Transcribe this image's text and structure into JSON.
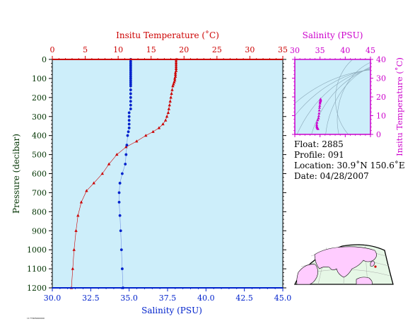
{
  "colors": {
    "plot_bg": "#cdeefa",
    "temperature": "#cc0000",
    "salinity": "#0022cc",
    "inset": "#cc00cc",
    "axis_text": "#003300",
    "land": "#ffccff",
    "sea": "#e6f7e6"
  },
  "chart_data": [
    {
      "type": "line",
      "ylabel": "Pressure (decibar)",
      "y_axis": {
        "ticks": [
          0,
          100,
          200,
          300,
          400,
          500,
          600,
          700,
          800,
          900,
          1000,
          1100,
          1200
        ],
        "range": [
          0,
          1200
        ],
        "inverted": true
      },
      "x_top": {
        "label": "Insitu Temperature (˚C)",
        "ticks": [
          0,
          5,
          10,
          15,
          20,
          25,
          30,
          35
        ],
        "range": [
          0,
          35
        ]
      },
      "x_bottom": {
        "label": "Salinity (PSU)",
        "ticks": [
          "30.0",
          "32.5",
          "35.0",
          "37.5",
          "40.0",
          "42.5",
          "45.0"
        ],
        "range": [
          30,
          45
        ]
      },
      "series": [
        {
          "axis": "top",
          "marker": "triangle",
          "points": [
            [
              18.8,
              0
            ],
            [
              18.8,
              10
            ],
            [
              18.8,
              20
            ],
            [
              18.8,
              30
            ],
            [
              18.8,
              40
            ],
            [
              18.8,
              50
            ],
            [
              18.8,
              60
            ],
            [
              18.7,
              70
            ],
            [
              18.7,
              80
            ],
            [
              18.7,
              90
            ],
            [
              18.6,
              100
            ],
            [
              18.6,
              110
            ],
            [
              18.5,
              120
            ],
            [
              18.4,
              130
            ],
            [
              18.3,
              140
            ],
            [
              18.2,
              160
            ],
            [
              18.1,
              180
            ],
            [
              18.0,
              200
            ],
            [
              17.9,
              220
            ],
            [
              17.8,
              240
            ],
            [
              17.7,
              260
            ],
            [
              17.6,
              280
            ],
            [
              17.4,
              300
            ],
            [
              17.2,
              320
            ],
            [
              16.8,
              340
            ],
            [
              16.2,
              360
            ],
            [
              15.3,
              380
            ],
            [
              14.2,
              400
            ],
            [
              12.8,
              430
            ],
            [
              11.2,
              460
            ],
            [
              9.8,
              500
            ],
            [
              8.6,
              550
            ],
            [
              7.6,
              600
            ],
            [
              6.3,
              650
            ],
            [
              5.2,
              690
            ],
            [
              4.4,
              750
            ],
            [
              3.9,
              820
            ],
            [
              3.6,
              900
            ],
            [
              3.3,
              1000
            ],
            [
              3.1,
              1100
            ],
            [
              2.9,
              1200
            ]
          ]
        },
        {
          "axis": "bottom",
          "marker": "circle",
          "points": [
            [
              35.1,
              0
            ],
            [
              35.1,
              10
            ],
            [
              35.1,
              20
            ],
            [
              35.1,
              30
            ],
            [
              35.1,
              40
            ],
            [
              35.1,
              50
            ],
            [
              35.1,
              60
            ],
            [
              35.1,
              70
            ],
            [
              35.1,
              80
            ],
            [
              35.1,
              90
            ],
            [
              35.1,
              100
            ],
            [
              35.1,
              110
            ],
            [
              35.1,
              120
            ],
            [
              35.1,
              130
            ],
            [
              35.1,
              140
            ],
            [
              35.1,
              160
            ],
            [
              35.1,
              180
            ],
            [
              35.1,
              200
            ],
            [
              35.1,
              220
            ],
            [
              35.1,
              240
            ],
            [
              35.1,
              260
            ],
            [
              35.0,
              280
            ],
            [
              35.0,
              300
            ],
            [
              35.0,
              320
            ],
            [
              35.0,
              340
            ],
            [
              35.0,
              360
            ],
            [
              34.95,
              380
            ],
            [
              34.9,
              400
            ],
            [
              34.85,
              450
            ],
            [
              34.8,
              500
            ],
            [
              34.75,
              550
            ],
            [
              34.55,
              600
            ],
            [
              34.4,
              650
            ],
            [
              34.35,
              700
            ],
            [
              34.35,
              750
            ],
            [
              34.4,
              820
            ],
            [
              34.45,
              900
            ],
            [
              34.5,
              1000
            ],
            [
              34.55,
              1100
            ],
            [
              34.6,
              1200
            ]
          ]
        }
      ]
    },
    {
      "type": "scatter",
      "xlabel": "Salinity (PSU)",
      "ylabel": "Insitu Temperature (˚C)",
      "x_ticks": [
        30,
        35,
        40,
        45
      ],
      "y_ticks": [
        0,
        10,
        20,
        30,
        40
      ],
      "xlim": [
        30,
        45
      ],
      "ylim": [
        0,
        40
      ],
      "points": [
        [
          35.1,
          18.8
        ],
        [
          35.1,
          18.7
        ],
        [
          35.1,
          18.5
        ],
        [
          35.1,
          18.2
        ],
        [
          35.1,
          17.9
        ],
        [
          35.05,
          17.6
        ],
        [
          35.0,
          17.2
        ],
        [
          35.0,
          16.5
        ],
        [
          34.95,
          15.3
        ],
        [
          34.9,
          14.2
        ],
        [
          34.85,
          12.8
        ],
        [
          34.8,
          11.2
        ],
        [
          34.75,
          9.8
        ],
        [
          34.7,
          8.6
        ],
        [
          34.55,
          7.6
        ],
        [
          34.4,
          6.3
        ],
        [
          34.35,
          5.2
        ],
        [
          34.35,
          4.4
        ],
        [
          34.4,
          3.9
        ],
        [
          34.45,
          3.6
        ],
        [
          34.5,
          3.3
        ],
        [
          34.55,
          3.1
        ],
        [
          34.6,
          2.9
        ]
      ]
    }
  ],
  "info": {
    "float": "Float:  2885",
    "profile": "Profile:  091",
    "location": "Location:  30.9˚N  150.6˚E",
    "date": "Date:  04/28/2007"
  },
  "footer_note": "1177005000000"
}
